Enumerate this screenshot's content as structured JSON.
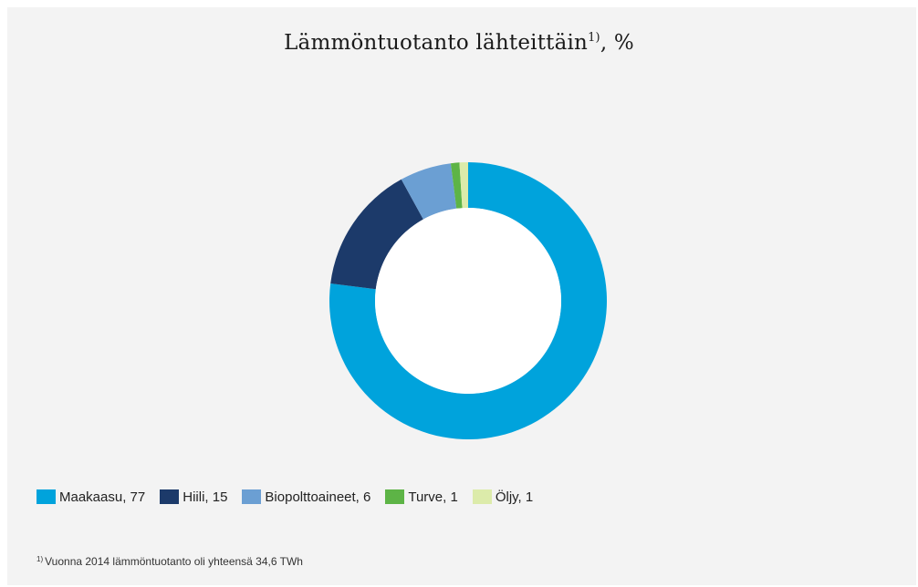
{
  "chart_data": {
    "type": "pie",
    "title": "Lämmöntuotanto lähteittäin",
    "title_superscript": "1)",
    "title_suffix": ", %",
    "categories": [
      "Maakaasu",
      "Hiili",
      "Biopolttoaineet",
      "Turve",
      "Öljy"
    ],
    "values": [
      77,
      15,
      6,
      1,
      1
    ],
    "colors": [
      "#00a3dc",
      "#1c3a6a",
      "#6b9fd3",
      "#5db446",
      "#dcebaa"
    ],
    "legend": {
      "placement": "bottom-left",
      "items": [
        "Maakaasu, 77",
        "Hiili, 15",
        "Biopolttoaineet, 6",
        "Turve, 1",
        "Öljy, 1"
      ]
    },
    "footnote": {
      "marker": "1)",
      "text": "Vuonna 2014 lämmöntuotanto oli yhteensä 34,6 TWh"
    }
  }
}
